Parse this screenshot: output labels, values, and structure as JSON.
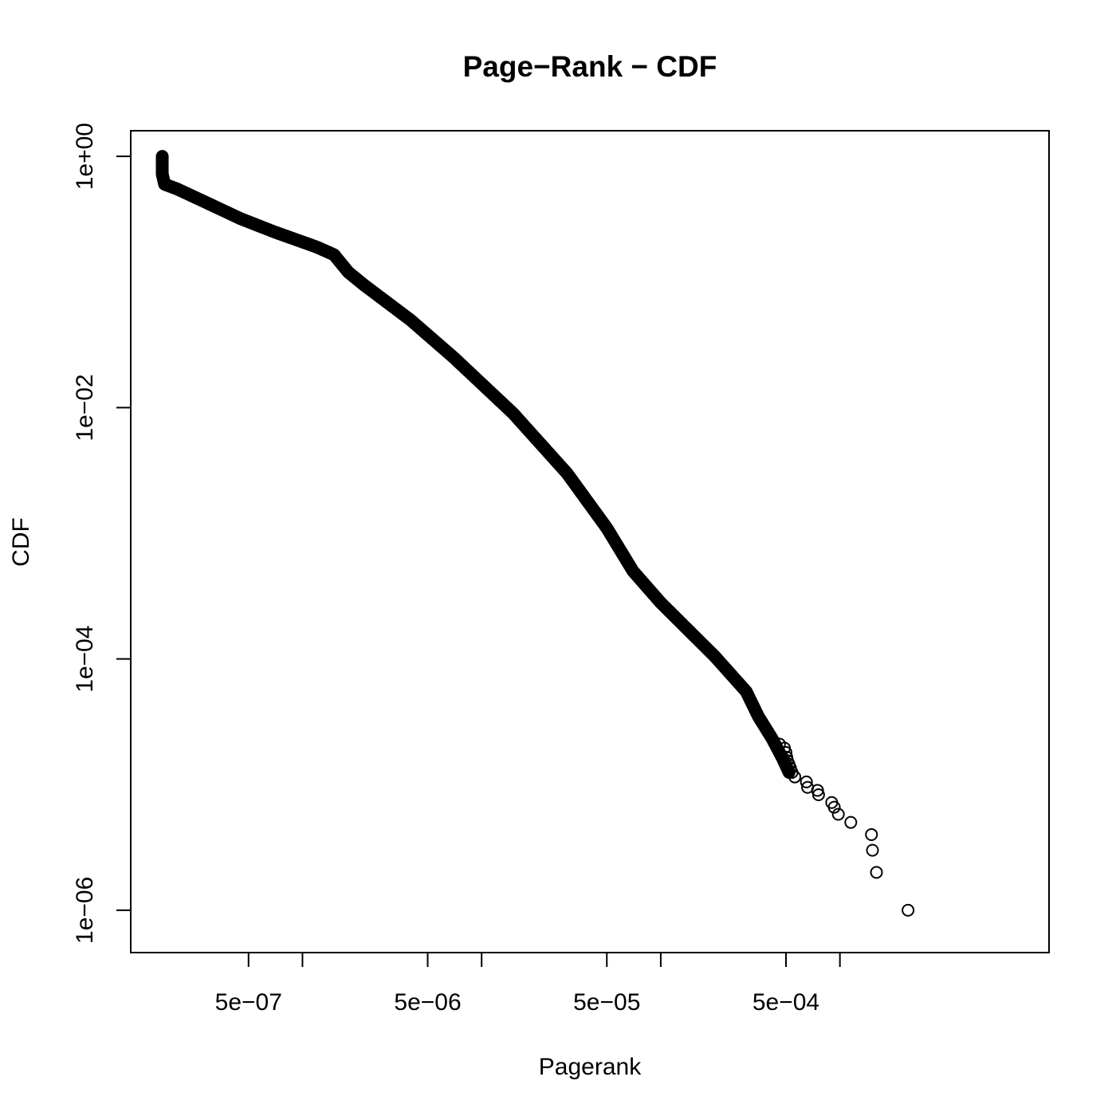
{
  "chart_data": {
    "type": "scatter",
    "title": "Page−Rank − CDF",
    "xlabel": "Pagerank",
    "ylabel": "CDF",
    "x_scale": "log",
    "y_scale": "log",
    "xlim": [
      1.1e-07,
      0.0147
    ],
    "ylim": [
      4.6e-07,
      1.6
    ],
    "x_ticks": [
      {
        "value": 5e-07,
        "label": "5e−07"
      },
      {
        "value": 1e-06,
        "label": ""
      },
      {
        "value": 5e-06,
        "label": "5e−06"
      },
      {
        "value": 1e-05,
        "label": ""
      },
      {
        "value": 5e-05,
        "label": "5e−05"
      },
      {
        "value": 0.0001,
        "label": ""
      },
      {
        "value": 0.0005,
        "label": "5e−04"
      },
      {
        "value": 0.001,
        "label": ""
      }
    ],
    "y_ticks": [
      {
        "value": 1,
        "label": "1e+00"
      },
      {
        "value": 0.01,
        "label": "1e−02"
      },
      {
        "value": 0.0001,
        "label": "1e−04"
      },
      {
        "value": 1e-06,
        "label": "1e−06"
      }
    ],
    "grid": false,
    "legend": false,
    "marker": "open-circle",
    "marker_color": "#000000",
    "series": [
      {
        "curve_knots": [
          [
            1.65e-07,
            1.0
          ],
          [
            1.65e-07,
            0.72
          ],
          [
            1.7e-07,
            0.6
          ],
          [
            2e-07,
            0.55
          ],
          [
            3e-07,
            0.42
          ],
          [
            4.5e-07,
            0.32
          ],
          [
            7e-07,
            0.25
          ],
          [
            1.2e-06,
            0.19
          ],
          [
            1.5e-06,
            0.165
          ],
          [
            1.8e-06,
            0.12
          ],
          [
            2.2e-06,
            0.095
          ],
          [
            4e-06,
            0.05
          ],
          [
            7e-06,
            0.025
          ],
          [
            1.5e-05,
            0.009
          ],
          [
            3e-05,
            0.003
          ],
          [
            5e-05,
            0.0011
          ],
          [
            7e-05,
            0.0005
          ],
          [
            0.0001,
            0.00028
          ],
          [
            0.0002,
            0.000105
          ],
          [
            0.0003,
            5.5e-05
          ],
          [
            0.00035,
            3.5e-05
          ],
          [
            0.00042,
            2.3e-05
          ],
          [
            0.00048,
            1.6e-05
          ],
          [
            0.00052,
            1.25e-05
          ]
        ],
        "tail_points": [
          [
            0.00046,
            2.1e-05
          ],
          [
            0.00049,
            1.95e-05
          ],
          [
            0.0005,
            1.8e-05
          ],
          [
            0.000505,
            1.65e-05
          ],
          [
            0.00051,
            1.55e-05
          ],
          [
            0.00052,
            1.45e-05
          ],
          [
            0.00053,
            1.35e-05
          ],
          [
            0.00054,
            1.25e-05
          ],
          [
            0.00056,
            1.15e-05
          ],
          [
            0.00065,
            1.05e-05
          ],
          [
            0.00066,
            9.5e-06
          ],
          [
            0.00075,
            9e-06
          ],
          [
            0.00076,
            8.3e-06
          ],
          [
            0.0009,
            7.2e-06
          ],
          [
            0.00093,
            6.6e-06
          ],
          [
            0.00098,
            5.8e-06
          ],
          [
            0.00115,
            5e-06
          ],
          [
            0.0015,
            4e-06
          ],
          [
            0.00152,
            3e-06
          ],
          [
            0.0016,
            2e-06
          ],
          [
            0.0024,
            1e-06
          ]
        ]
      }
    ]
  }
}
